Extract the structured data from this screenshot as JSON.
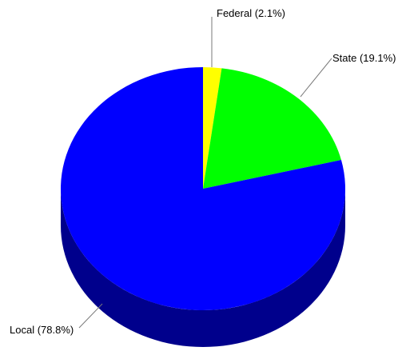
{
  "chart_data": {
    "type": "pie",
    "style": "3d",
    "slices": [
      {
        "label": "Federal",
        "value": 2.1,
        "display": "Federal (2.1%)",
        "color": "#ffff00",
        "side_color": "#8c8c00"
      },
      {
        "label": "State",
        "value": 19.1,
        "display": "State (19.1%)",
        "color": "#00ff00",
        "side_color": "#008c00"
      },
      {
        "label": "Local",
        "value": 78.8,
        "display": "Local (78.8%)",
        "color": "#0000ff",
        "side_color": "#00008c"
      }
    ],
    "grid": false,
    "legend": "none"
  }
}
